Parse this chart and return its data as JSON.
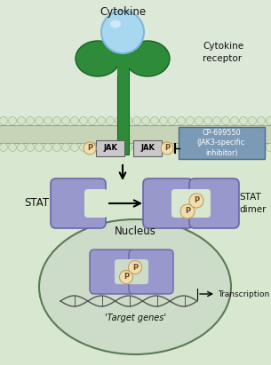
{
  "bg_color": "#dce8d8",
  "cell_interior_color": "#d8e8d0",
  "membrane_top_color": "#c8d8b8",
  "membrane_dots_color": "#b8c8b0",
  "receptor_green": "#2e8b3a",
  "receptor_green_edge": "#1a6025",
  "receptor_green_light": "#3aaa46",
  "cytokine_ball_color": "#a8d8f0",
  "cytokine_ball_edge": "#80b8d8",
  "jak_box_color": "#c8c8c8",
  "jak_box_edge": "#606060",
  "p_circle_color": "#f0ddb0",
  "p_circle_edge": "#c0a060",
  "stat_color": "#9898cc",
  "stat_edge": "#6868a8",
  "stat_light": "#b0b0dd",
  "nucleus_fill": "#ccdcc8",
  "nucleus_edge": "#5a7a55",
  "inhibitor_box_color": "#7a9ab5",
  "inhibitor_box_edge": "#4a6a85",
  "text_color": "#111111",
  "dna_color": "#555555",
  "title_cytokine": "Cytokine",
  "label_receptor": "Cytokine\nreceptor",
  "label_jak": "JAK",
  "label_p": "P",
  "label_stat": "STAT",
  "label_stat_dimer": "STAT\ndimer",
  "label_nucleus": "Nucleus",
  "label_transcription": "Transcription",
  "label_target": "'Target genes'",
  "label_inhibitor": "CP-699550\n(JAK3-specific\ninhibitor)",
  "figsize": [
    3.05,
    4.11
  ],
  "dpi": 100
}
